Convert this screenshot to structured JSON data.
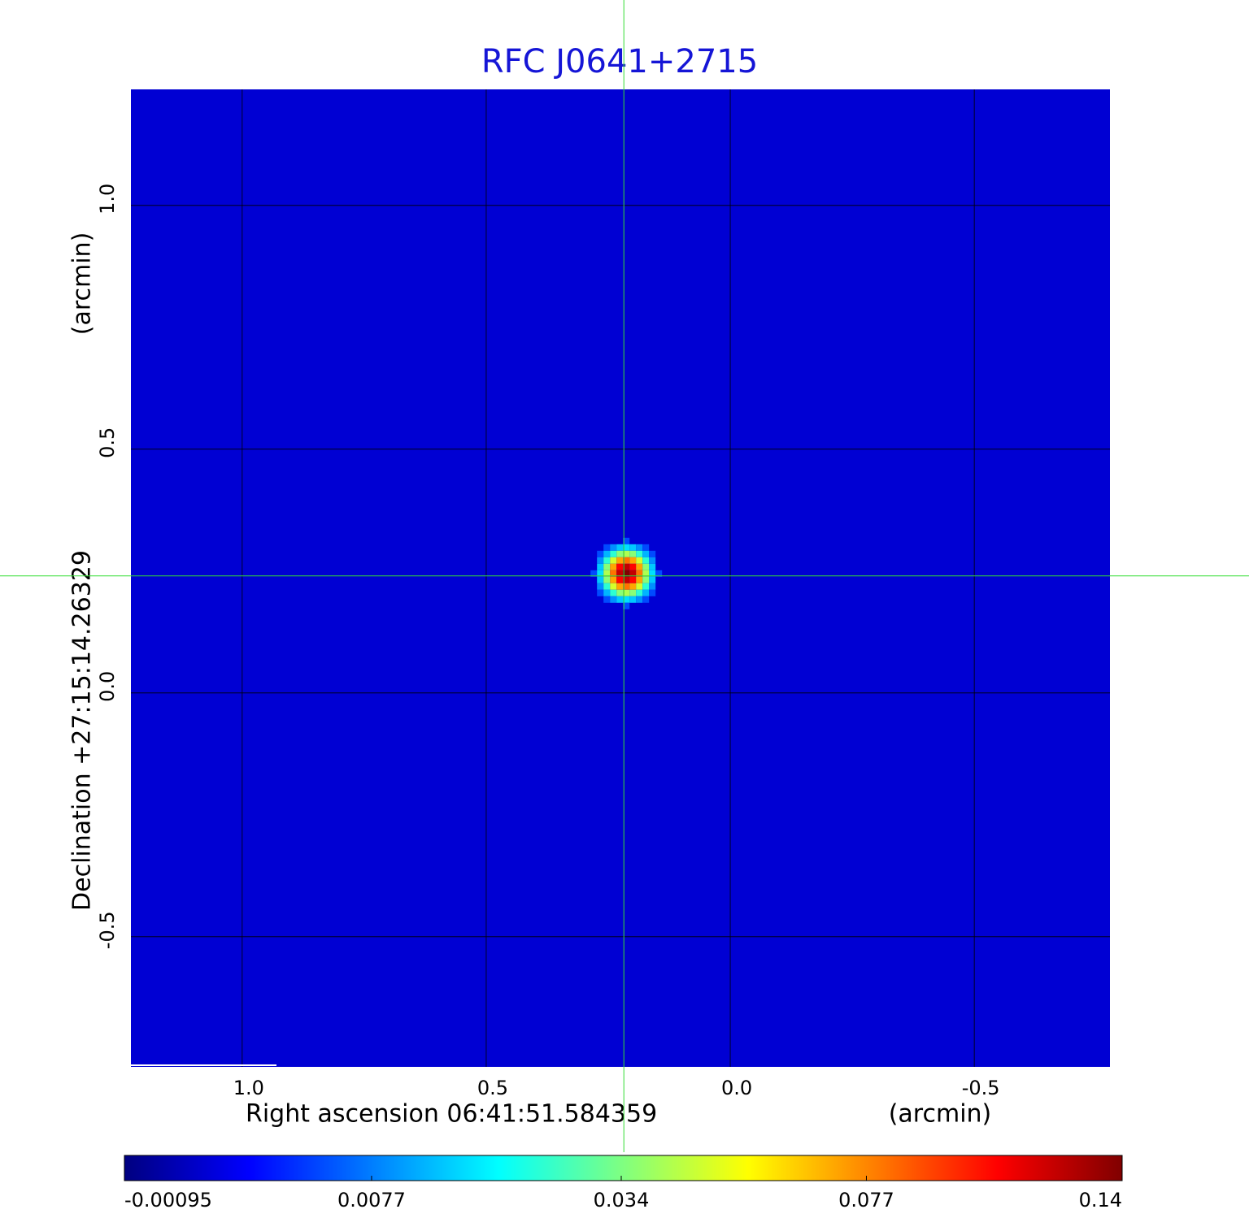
{
  "chart_data": {
    "type": "image",
    "title": "RFC J0641+2715",
    "title_color": "#1515d6",
    "x_label": "Right ascension  06:41:51.584359",
    "x_unit": "(arcmin)",
    "y_label": "Declination  +27:15:14.26329",
    "y_unit": "(arcmin)",
    "xlim": [
      1.228,
      -0.778
    ],
    "ylim": [
      -0.767,
      1.238
    ],
    "xticks": [
      {
        "value": 1,
        "label": "1.0"
      },
      0.5,
      {
        "value": 0,
        "label": "0.0"
      },
      -0.5
    ],
    "yticks": [
      -0.5,
      {
        "value": 0,
        "label": "0.0"
      },
      0.5,
      {
        "value": 1,
        "label": "1.0"
      }
    ],
    "grid": true,
    "grid_color": "#000000",
    "colormap": "jet",
    "colorbar_scale": "sqrt",
    "colorbar_lim": [
      -0.00095,
      0.14
    ],
    "colorbar_ticks": [
      -0.00095,
      0.0077,
      0.034,
      0.077,
      0.14
    ],
    "background_level": 0,
    "sources": [
      {
        "x": 0.213,
        "y": 0.245,
        "peak": 0.14,
        "fwhm": 0.06
      }
    ],
    "crosshair": [
      0.218,
      0.24
    ],
    "crosshair_color": "#33dd33"
  }
}
